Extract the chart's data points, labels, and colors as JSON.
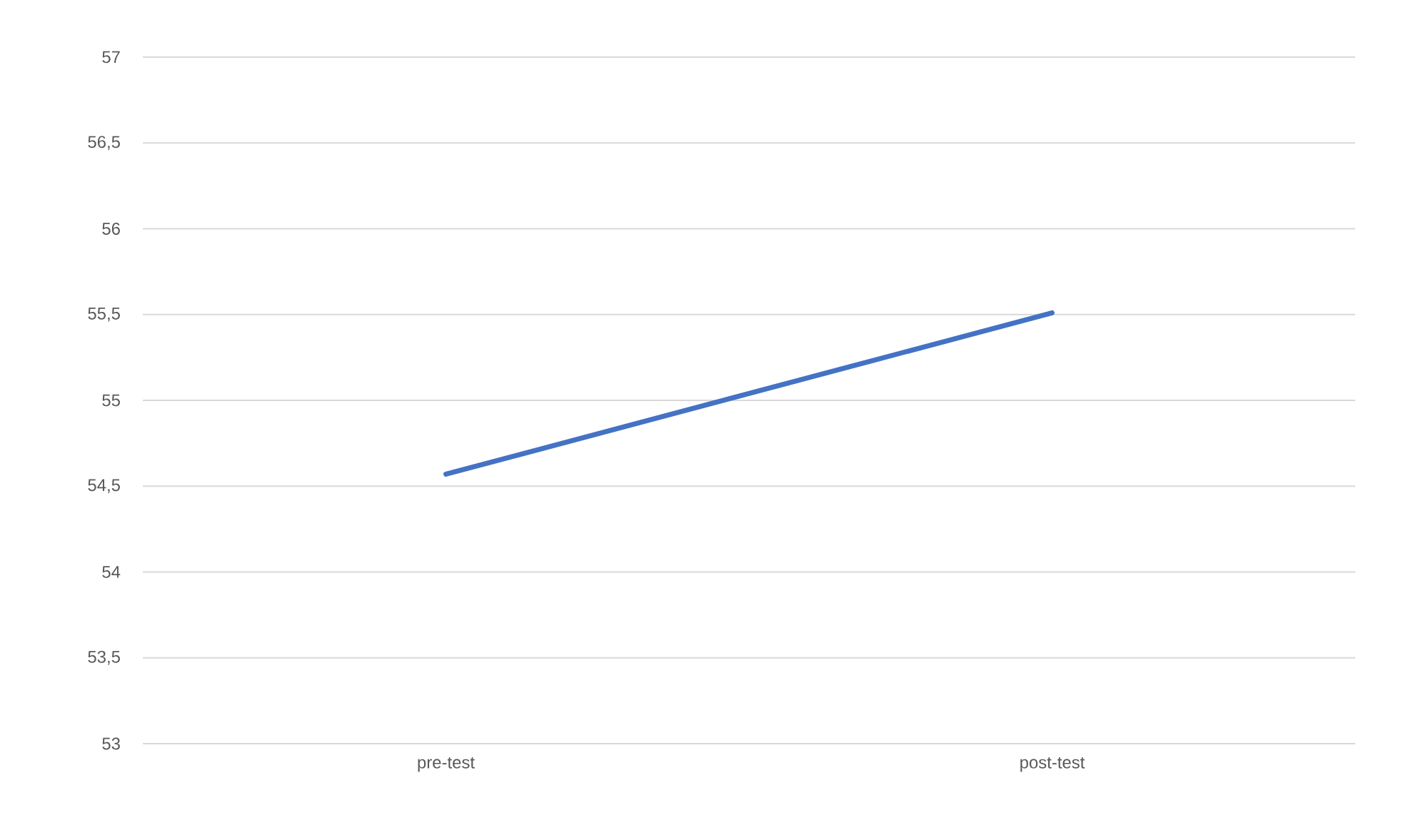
{
  "chart_data": {
    "type": "line",
    "categories": [
      "pre-test",
      "post-test"
    ],
    "series": [
      {
        "color": "#4472c4",
        "values": [
          54.57,
          55.51
        ]
      }
    ],
    "ylim": [
      53,
      57
    ],
    "yticks": [
      53,
      {
        "value": 53.5,
        "label": "53,5"
      },
      54,
      {
        "value": 54.5,
        "label": "54,5"
      },
      55,
      {
        "value": 55.5,
        "label": "55,5"
      },
      56,
      {
        "value": 56.5,
        "label": "56,5"
      },
      57
    ],
    "grid": "y",
    "marker": "none",
    "line_style": "solid"
  }
}
